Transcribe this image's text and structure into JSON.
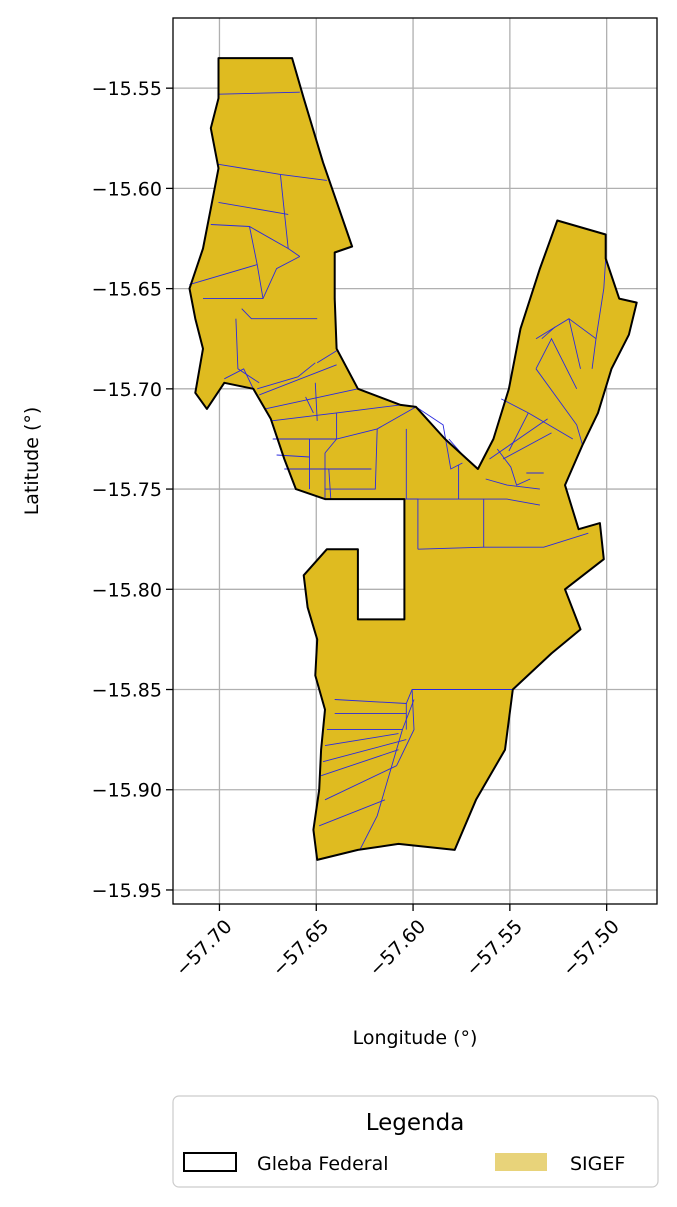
{
  "chart_data": {
    "type": "map",
    "xlabel": "Longitude (°)",
    "ylabel": "Latitude (°)",
    "xlim": [
      -57.724,
      -57.474
    ],
    "ylim": [
      -15.957,
      -15.515
    ],
    "x_ticks": [
      -57.7,
      -57.65,
      -57.6,
      -57.55,
      -57.5
    ],
    "x_tick_labels": [
      "−57.70",
      "−57.65",
      "−57.60",
      "−57.55",
      "−57.50"
    ],
    "y_ticks": [
      -15.55,
      -15.6,
      -15.65,
      -15.7,
      -15.75,
      -15.8,
      -15.85,
      -15.9,
      -15.95
    ],
    "y_tick_labels": [
      "−15.55",
      "−15.60",
      "−15.65",
      "−15.70",
      "−15.75",
      "−15.80",
      "−15.85",
      "−15.90",
      "−15.95"
    ],
    "grid": true,
    "legend": {
      "title": "Legenda",
      "placement": "bottom-center",
      "entries": [
        {
          "label": "Gleba Federal",
          "style": "outline",
          "color": "#000000"
        },
        {
          "label": "SIGEF",
          "style": "fill",
          "color": "#e8d37a"
        }
      ]
    },
    "colors": {
      "sigef_fill": "#dfbb20",
      "parcel_edge": "#2a2adf",
      "boundary": "#000000",
      "grid": "#b0b0b0"
    },
    "boundary": [
      [
        -57.7005,
        -15.535
      ],
      [
        -57.6625,
        -15.535
      ],
      [
        -57.6565,
        -15.555
      ],
      [
        -57.6465,
        -15.587
      ],
      [
        -57.6315,
        -15.629
      ],
      [
        -57.6405,
        -15.632
      ],
      [
        -57.6405,
        -15.655
      ],
      [
        -57.6395,
        -15.68
      ],
      [
        -57.6285,
        -15.7
      ],
      [
        -57.6065,
        -15.708
      ],
      [
        -57.5985,
        -15.709
      ],
      [
        -57.5835,
        -15.725
      ],
      [
        -57.5665,
        -15.74
      ],
      [
        -57.5585,
        -15.725
      ],
      [
        -57.5505,
        -15.7
      ],
      [
        -57.5445,
        -15.67
      ],
      [
        -57.5345,
        -15.64
      ],
      [
        -57.5255,
        -15.616
      ],
      [
        -57.5005,
        -15.623
      ],
      [
        -57.5005,
        -15.635
      ],
      [
        -57.4935,
        -15.655
      ],
      [
        -57.4845,
        -15.657
      ],
      [
        -57.4885,
        -15.673
      ],
      [
        -57.4975,
        -15.69
      ],
      [
        -57.5045,
        -15.712
      ],
      [
        -57.5125,
        -15.728
      ],
      [
        -57.5215,
        -15.748
      ],
      [
        -57.5145,
        -15.77
      ],
      [
        -57.5035,
        -15.767
      ],
      [
        -57.5015,
        -15.785
      ],
      [
        -57.5215,
        -15.8
      ],
      [
        -57.5135,
        -15.82
      ],
      [
        -57.5285,
        -15.832
      ],
      [
        -57.5485,
        -15.85
      ],
      [
        -57.5525,
        -15.88
      ],
      [
        -57.5675,
        -15.905
      ],
      [
        -57.5785,
        -15.93
      ],
      [
        -57.6075,
        -15.927
      ],
      [
        -57.6285,
        -15.93
      ],
      [
        -57.6495,
        -15.935
      ],
      [
        -57.6515,
        -15.92
      ],
      [
        -57.6485,
        -15.9
      ],
      [
        -57.6475,
        -15.88
      ],
      [
        -57.6455,
        -15.86
      ],
      [
        -57.6505,
        -15.843
      ],
      [
        -57.6495,
        -15.825
      ],
      [
        -57.6545,
        -15.809
      ],
      [
        -57.6565,
        -15.793
      ],
      [
        -57.6445,
        -15.78
      ],
      [
        -57.6285,
        -15.78
      ],
      [
        -57.6285,
        -15.815
      ],
      [
        -57.6045,
        -15.815
      ],
      [
        -57.6045,
        -15.755
      ],
      [
        -57.6255,
        -15.755
      ],
      [
        -57.6455,
        -15.755
      ],
      [
        -57.6605,
        -15.75
      ],
      [
        -57.6665,
        -15.735
      ],
      [
        -57.6735,
        -15.715
      ],
      [
        -57.6825,
        -15.7
      ],
      [
        -57.6975,
        -15.697
      ],
      [
        -57.7065,
        -15.71
      ],
      [
        -57.7125,
        -15.702
      ],
      [
        -57.7085,
        -15.68
      ],
      [
        -57.7125,
        -15.665
      ],
      [
        -57.7155,
        -15.65
      ],
      [
        -57.7085,
        -15.63
      ],
      [
        -57.7045,
        -15.61
      ],
      [
        -57.7005,
        -15.59
      ],
      [
        -57.7045,
        -15.57
      ],
      [
        -57.7005,
        -15.555
      ]
    ],
    "parcel_lines": [
      [
        [
          -57.7005,
          -15.553
        ],
        [
          -57.6585,
          -15.552
        ]
      ],
      [
        [
          -57.7005,
          -15.588
        ],
        [
          -57.6685,
          -15.593
        ],
        [
          -57.6445,
          -15.596
        ]
      ],
      [
        [
          -57.6685,
          -15.593
        ],
        [
          -57.6645,
          -15.63
        ],
        [
          -57.6585,
          -15.634
        ]
      ],
      [
        [
          -57.7005,
          -15.607
        ],
        [
          -57.6645,
          -15.613
        ]
      ],
      [
        [
          -57.7045,
          -15.618
        ],
        [
          -57.6845,
          -15.619
        ],
        [
          -57.6645,
          -15.63
        ]
      ],
      [
        [
          -57.6845,
          -15.619
        ],
        [
          -57.6805,
          -15.638
        ],
        [
          -57.6775,
          -15.655
        ]
      ],
      [
        [
          -57.7155,
          -15.648
        ],
        [
          -57.6805,
          -15.638
        ]
      ],
      [
        [
          -57.7085,
          -15.655
        ],
        [
          -57.6775,
          -15.655
        ],
        [
          -57.6705,
          -15.64
        ],
        [
          -57.6585,
          -15.634
        ]
      ],
      [
        [
          -57.6885,
          -15.66
        ],
        [
          -57.6835,
          -15.665
        ],
        [
          -57.6495,
          -15.665
        ]
      ],
      [
        [
          -57.6915,
          -15.665
        ],
        [
          -57.6905,
          -15.69
        ],
        [
          -57.6795,
          -15.697
        ]
      ],
      [
        [
          -57.6975,
          -15.695
        ],
        [
          -57.6875,
          -15.69
        ],
        [
          -57.6825,
          -15.7
        ]
      ],
      [
        [
          -57.6805,
          -15.7
        ],
        [
          -57.6595,
          -15.694
        ],
        [
          -57.6505,
          -15.687
        ]
      ],
      [
        [
          -57.6395,
          -15.681
        ],
        [
          -57.6495,
          -15.687
        ]
      ],
      [
        [
          -57.6795,
          -15.703
        ],
        [
          -57.6395,
          -15.688
        ]
      ],
      [
        [
          -57.6765,
          -15.71
        ],
        [
          -57.6285,
          -15.7
        ]
      ],
      [
        [
          -57.6735,
          -15.716
        ],
        [
          -57.6395,
          -15.712
        ],
        [
          -57.6065,
          -15.708
        ]
      ],
      [
        [
          -57.6555,
          -15.704
        ],
        [
          -57.6515,
          -15.712
        ]
      ],
      [
        [
          -57.6505,
          -15.697
        ],
        [
          -57.6495,
          -15.716
        ]
      ],
      [
        [
          -57.6395,
          -15.712
        ],
        [
          -57.6395,
          -15.725
        ]
      ],
      [
        [
          -57.6725,
          -15.725
        ],
        [
          -57.6395,
          -15.725
        ],
        [
          -57.6185,
          -15.72
        ],
        [
          -57.5985,
          -15.709
        ]
      ],
      [
        [
          -57.6705,
          -15.733
        ],
        [
          -57.6535,
          -15.734
        ]
      ],
      [
        [
          -57.6535,
          -15.725
        ],
        [
          -57.6535,
          -15.75
        ]
      ],
      [
        [
          -57.6665,
          -15.74
        ],
        [
          -57.6535,
          -15.74
        ]
      ],
      [
        [
          -57.6455,
          -15.732
        ],
        [
          -57.6395,
          -15.725
        ]
      ],
      [
        [
          -57.6455,
          -15.732
        ],
        [
          -57.6455,
          -15.755
        ]
      ],
      [
        [
          -57.6535,
          -15.74
        ],
        [
          -57.6215,
          -15.74
        ]
      ],
      [
        [
          -57.6435,
          -15.74
        ],
        [
          -57.6425,
          -15.755
        ]
      ],
      [
        [
          -57.6455,
          -15.75
        ],
        [
          -57.6195,
          -15.75
        ],
        [
          -57.6185,
          -15.72
        ]
      ],
      [
        [
          -57.6035,
          -15.755
        ],
        [
          -57.5975,
          -15.755
        ],
        [
          -57.5975,
          -15.78
        ]
      ],
      [
        [
          -57.6035,
          -15.72
        ],
        [
          -57.6035,
          -15.755
        ]
      ],
      [
        [
          -57.5985,
          -15.709
        ],
        [
          -57.5845,
          -15.718
        ],
        [
          -57.5805,
          -15.74
        ],
        [
          -57.5745,
          -15.737
        ]
      ],
      [
        [
          -57.5815,
          -15.725
        ],
        [
          -57.5725,
          -15.735
        ],
        [
          -57.5665,
          -15.74
        ]
      ],
      [
        [
          -57.5765,
          -15.738
        ],
        [
          -57.5765,
          -15.755
        ]
      ],
      [
        [
          -57.6045,
          -15.755
        ],
        [
          -57.5765,
          -15.755
        ],
        [
          -57.5515,
          -15.755
        ],
        [
          -57.5345,
          -15.758
        ]
      ],
      [
        [
          -57.5975,
          -15.78
        ],
        [
          -57.5635,
          -15.779
        ],
        [
          -57.5325,
          -15.779
        ],
        [
          -57.5095,
          -15.772
        ]
      ],
      [
        [
          -57.5635,
          -15.779
        ],
        [
          -57.5635,
          -15.755
        ]
      ],
      [
        [
          -57.5625,
          -15.745
        ],
        [
          -57.5515,
          -15.748
        ],
        [
          -57.5345,
          -15.75
        ]
      ],
      [
        [
          -57.5565,
          -15.73
        ],
        [
          -57.5495,
          -15.739
        ],
        [
          -57.5465,
          -15.748
        ],
        [
          -57.5395,
          -15.745
        ]
      ],
      [
        [
          -57.5605,
          -15.735
        ],
        [
          -57.5305,
          -15.715
        ]
      ],
      [
        [
          -57.5535,
          -15.735
        ],
        [
          -57.5285,
          -15.722
        ]
      ],
      [
        [
          -57.5505,
          -15.731
        ],
        [
          -57.5405,
          -15.712
        ]
      ],
      [
        [
          -57.5415,
          -15.742
        ],
        [
          -57.5325,
          -15.742
        ]
      ],
      [
        [
          -57.5545,
          -15.705
        ],
        [
          -57.5405,
          -15.712
        ]
      ],
      [
        [
          -57.5405,
          -15.712
        ],
        [
          -57.5175,
          -15.725
        ]
      ],
      [
        [
          -57.5365,
          -15.69
        ],
        [
          -57.5155,
          -15.718
        ],
        [
          -57.5125,
          -15.728
        ]
      ],
      [
        [
          -57.5365,
          -15.69
        ],
        [
          -57.5285,
          -15.675
        ],
        [
          -57.5155,
          -15.7
        ]
      ],
      [
        [
          -57.5365,
          -15.675
        ],
        [
          -57.5195,
          -15.665
        ],
        [
          -57.5135,
          -15.69
        ]
      ],
      [
        [
          -57.5335,
          -15.675
        ],
        [
          -57.5265,
          -15.669
        ]
      ],
      [
        [
          -57.5195,
          -15.665
        ],
        [
          -57.5055,
          -15.675
        ],
        [
          -57.5075,
          -15.69
        ]
      ],
      [
        [
          -57.5055,
          -15.675
        ],
        [
          -57.5015,
          -15.65
        ],
        [
          -57.5005,
          -15.635
        ]
      ],
      [
        [
          -57.6405,
          -15.855
        ],
        [
          -57.6035,
          -15.857
        ],
        [
          -57.6005,
          -15.85
        ],
        [
          -57.5485,
          -15.85
        ]
      ],
      [
        [
          -57.6035,
          -15.857
        ],
        [
          -57.6035,
          -15.87
        ]
      ],
      [
        [
          -57.6405,
          -15.862
        ],
        [
          -57.6035,
          -15.862
        ]
      ],
      [
        [
          -57.6445,
          -15.87
        ],
        [
          -57.6055,
          -15.87
        ],
        [
          -57.5995,
          -15.855
        ]
      ],
      [
        [
          -57.6455,
          -15.878
        ],
        [
          -57.6075,
          -15.872
        ]
      ],
      [
        [
          -57.6465,
          -15.886
        ],
        [
          -57.6035,
          -15.875
        ]
      ],
      [
        [
          -57.6475,
          -15.893
        ],
        [
          -57.6075,
          -15.88
        ]
      ],
      [
        [
          -57.6455,
          -15.905
        ],
        [
          -57.6085,
          -15.888
        ]
      ],
      [
        [
          -57.6485,
          -15.918
        ],
        [
          -57.6145,
          -15.905
        ]
      ],
      [
        [
          -57.6055,
          -15.87
        ],
        [
          -57.6185,
          -15.913
        ],
        [
          -57.6275,
          -15.93
        ]
      ],
      [
        [
          -57.6005,
          -15.85
        ],
        [
          -57.5995,
          -15.87
        ],
        [
          -57.6085,
          -15.888
        ]
      ]
    ]
  }
}
